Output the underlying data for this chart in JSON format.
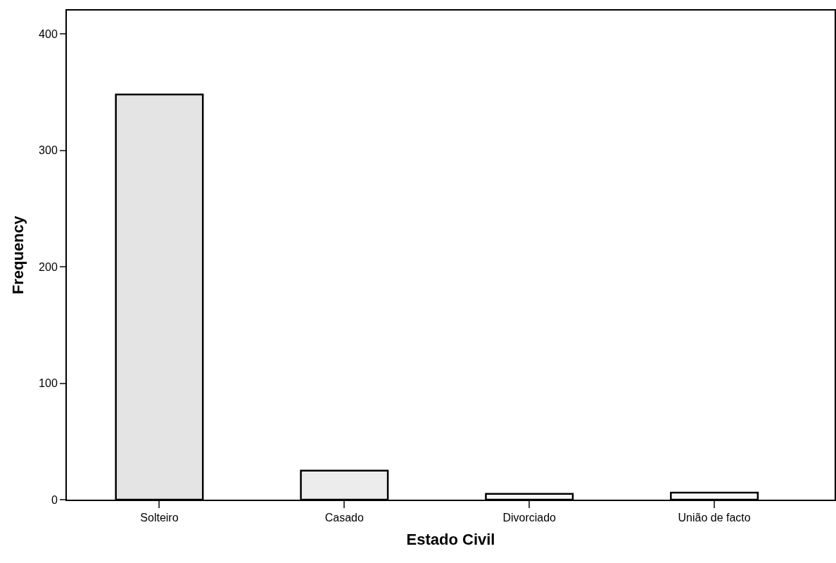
{
  "chart_data": {
    "type": "bar",
    "xlabel": "Estado Civil",
    "ylabel": "Frequency",
    "categories": [
      "Solteiro",
      "Casado",
      "Divorciado",
      "União de facto"
    ],
    "values": [
      348,
      25,
      5,
      6
    ],
    "colors": [
      "#e4e4e4",
      "#ececec",
      "#f8f8f8",
      "#f8f8f8"
    ],
    "ylim": [
      0,
      420
    ],
    "yticks": [
      0,
      100,
      200,
      300,
      400
    ]
  }
}
